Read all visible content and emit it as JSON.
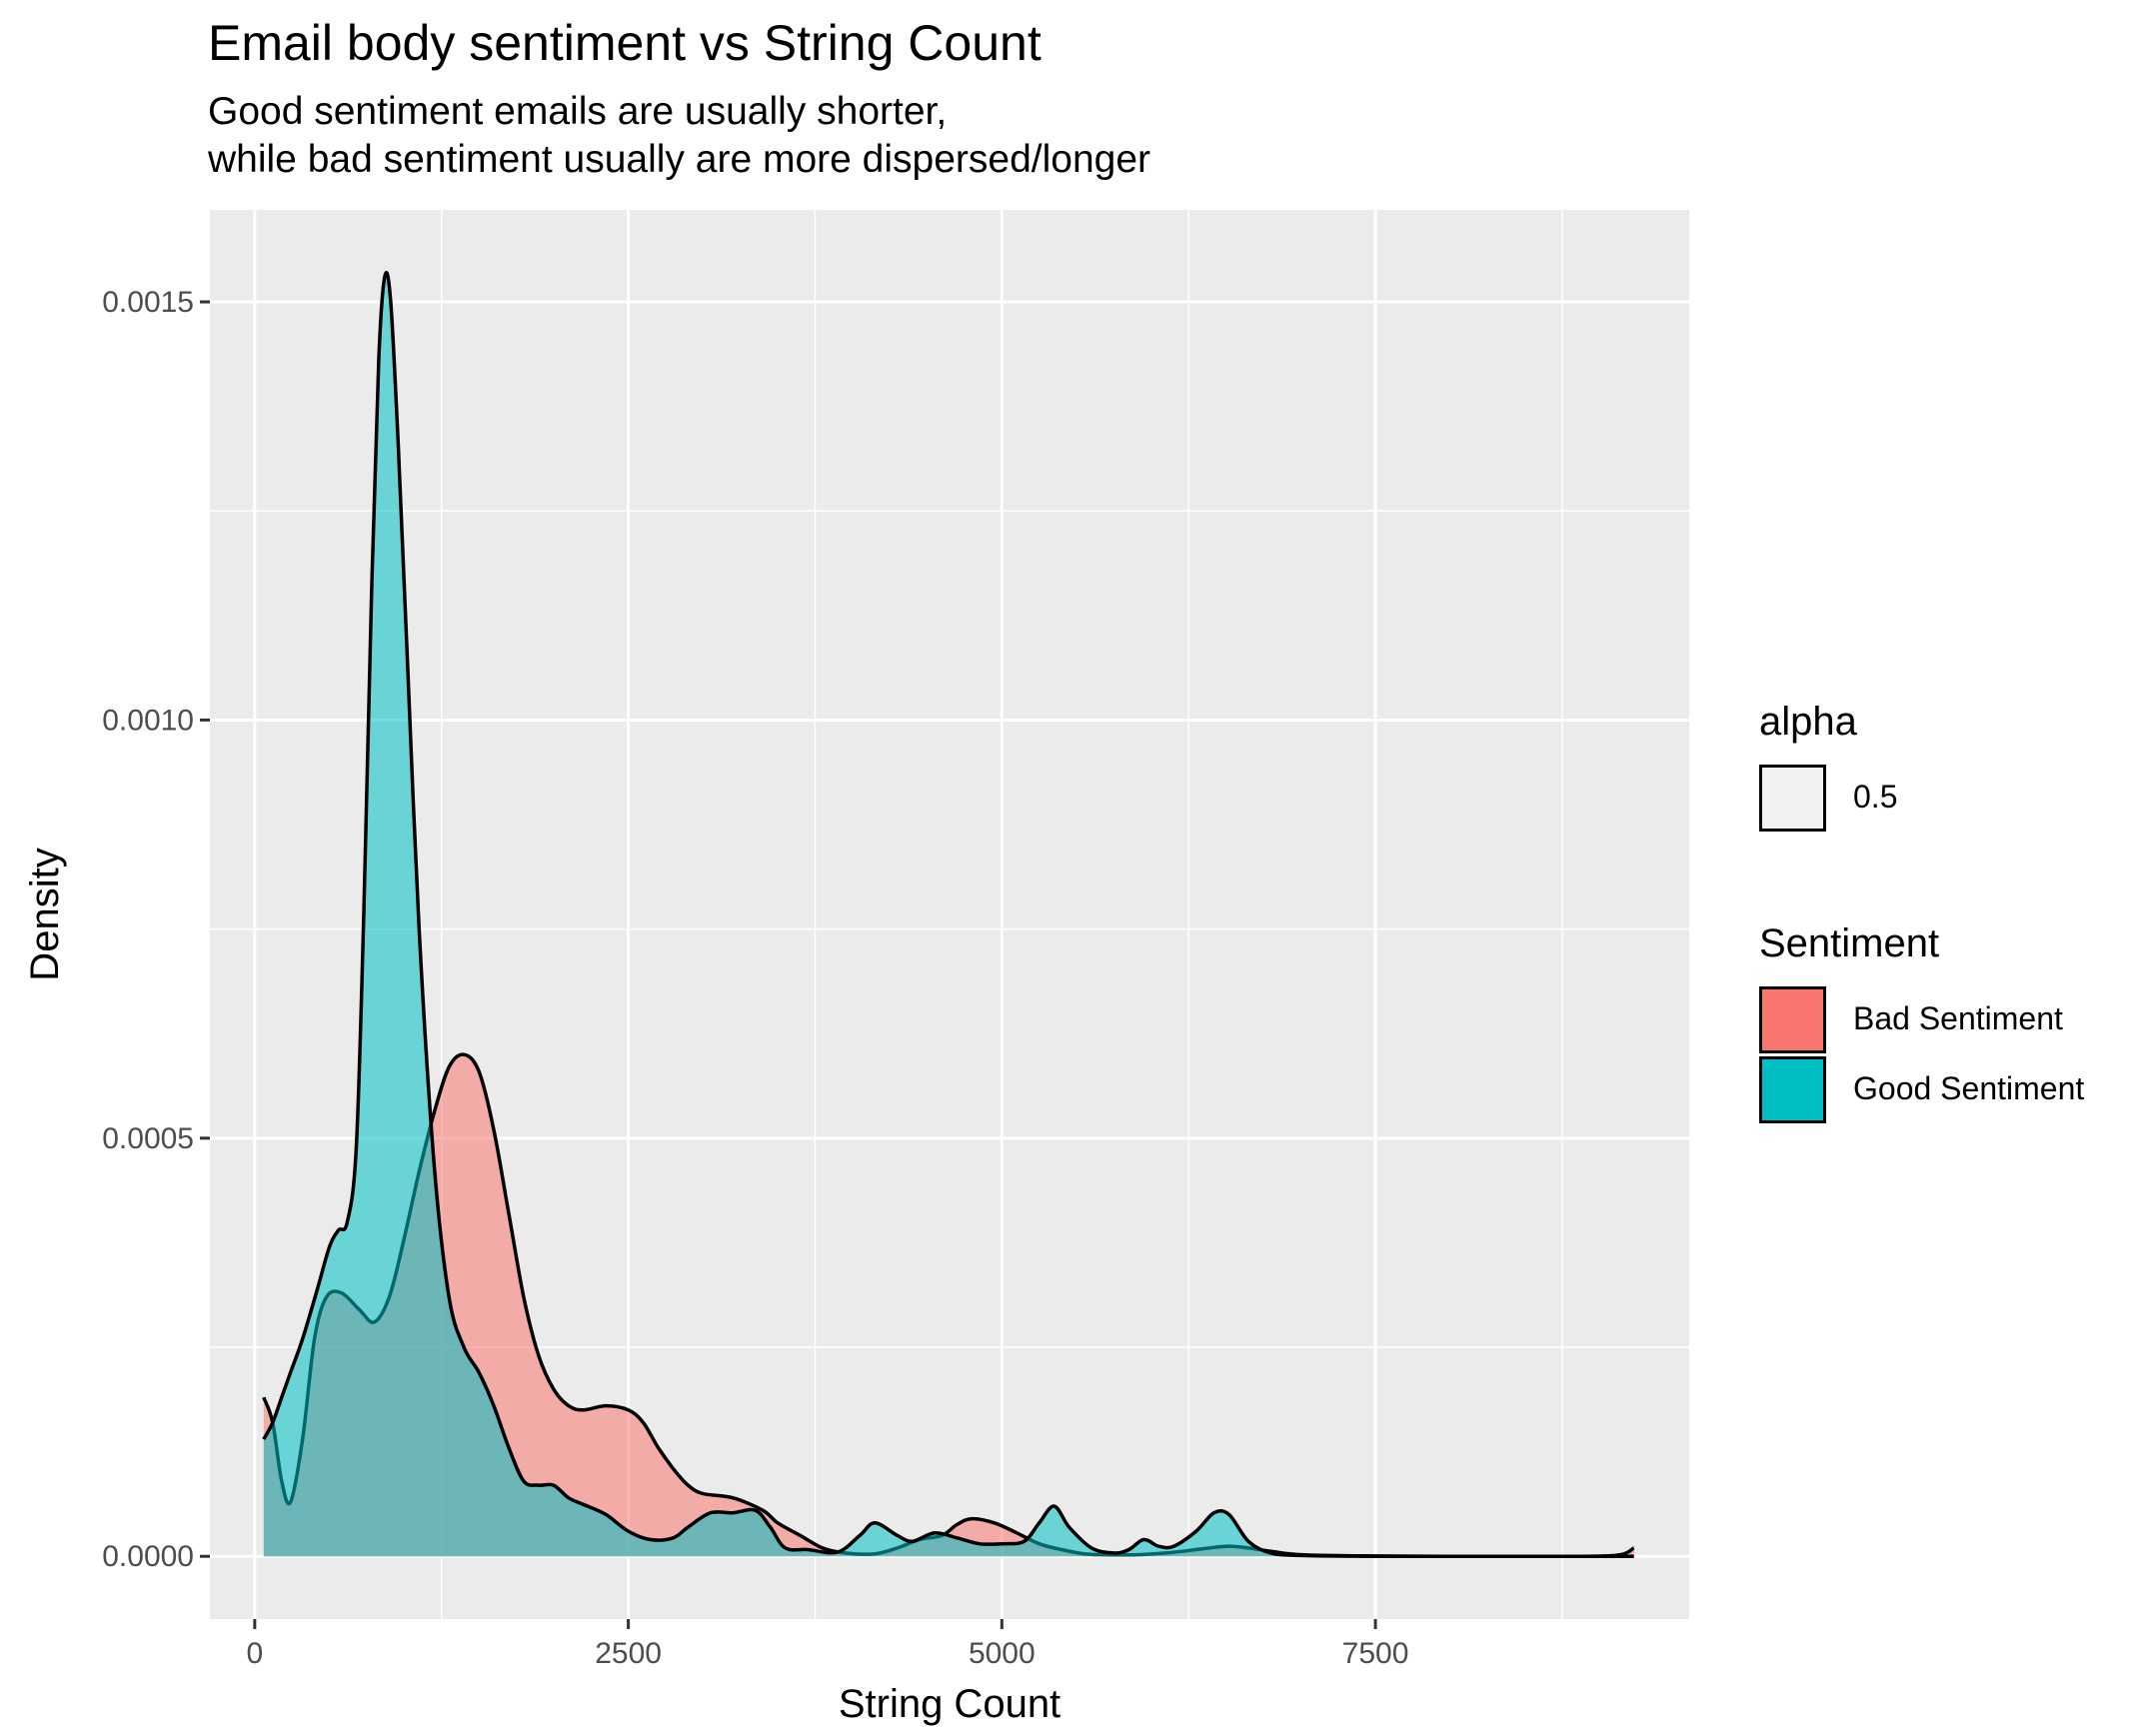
{
  "chart_data": {
    "type": "area",
    "subtype": "density",
    "title": "Email body sentiment vs String Count",
    "subtitle": [
      "Good sentiment emails are usually shorter,",
      "while bad sentiment usually are more dispersed/longer"
    ],
    "xlabel": "String Count",
    "ylabel": "Density",
    "xlim": [
      -300,
      9600
    ],
    "ylim": [
      -7.5e-05,
      0.00161
    ],
    "x_ticks": [
      0,
      2500,
      5000,
      7500
    ],
    "x_tick_labels": [
      "0",
      "2500",
      "5000",
      "7500"
    ],
    "y_ticks": [
      0,
      0.0005,
      0.001,
      0.0015
    ],
    "y_tick_labels": [
      "0.0000",
      "0.0005",
      "0.0010",
      "0.0015"
    ],
    "grid": true,
    "legend_position": "right",
    "legends": [
      {
        "title": "alpha",
        "items": [
          {
            "label": "0.5",
            "color": "#f2f2f2"
          }
        ]
      },
      {
        "title": "Sentiment",
        "items": [
          {
            "label": "Bad Sentiment",
            "color": "#F8766D"
          },
          {
            "label": "Good Sentiment",
            "color": "#00BFC4"
          }
        ]
      }
    ],
    "series": [
      {
        "name": "Bad Sentiment",
        "color": "#F8766D",
        "points": [
          [
            60,
            0.00019
          ],
          [
            120,
            0.00016
          ],
          [
            180,
            9e-05
          ],
          [
            240,
            6.5e-05
          ],
          [
            320,
            0.00014
          ],
          [
            400,
            0.00026
          ],
          [
            480,
            0.00031
          ],
          [
            580,
            0.000315
          ],
          [
            700,
            0.000295
          ],
          [
            800,
            0.00028
          ],
          [
            900,
            0.00031
          ],
          [
            1000,
            0.00038
          ],
          [
            1100,
            0.00046
          ],
          [
            1200,
            0.00053
          ],
          [
            1300,
            0.000585
          ],
          [
            1400,
            0.0006
          ],
          [
            1500,
            0.00058
          ],
          [
            1600,
            0.00051
          ],
          [
            1700,
            0.00041
          ],
          [
            1800,
            0.00031
          ],
          [
            1900,
            0.00024
          ],
          [
            2000,
            0.0002
          ],
          [
            2100,
            0.00018
          ],
          [
            2200,
            0.000175
          ],
          [
            2350,
            0.00018
          ],
          [
            2500,
            0.000175
          ],
          [
            2600,
            0.00016
          ],
          [
            2700,
            0.00013
          ],
          [
            2800,
            0.000105
          ],
          [
            2900,
            8.5e-05
          ],
          [
            3000,
            7.5e-05
          ],
          [
            3200,
            7e-05
          ],
          [
            3400,
            5.5e-05
          ],
          [
            3500,
            4e-05
          ],
          [
            3650,
            2.5e-05
          ],
          [
            3800,
            1e-05
          ],
          [
            3950,
            4e-06
          ],
          [
            4150,
            3e-06
          ],
          [
            4300,
            1e-05
          ],
          [
            4450,
            2e-05
          ],
          [
            4600,
            2.5e-05
          ],
          [
            4700,
            3.8e-05
          ],
          [
            4800,
            4.5e-05
          ],
          [
            4950,
            4e-05
          ],
          [
            5100,
            2.8e-05
          ],
          [
            5250,
            1.5e-05
          ],
          [
            5400,
            8e-06
          ],
          [
            5550,
            3e-06
          ],
          [
            5700,
            2e-06
          ],
          [
            5900,
            2e-06
          ],
          [
            6100,
            4e-06
          ],
          [
            6300,
            8e-06
          ],
          [
            6500,
            1.2e-05
          ],
          [
            6650,
            1e-05
          ],
          [
            6800,
            6e-06
          ],
          [
            7000,
            2e-06
          ],
          [
            7400,
            5e-07
          ],
          [
            8000,
            0
          ],
          [
            8600,
            0
          ],
          [
            9100,
            1e-06
          ],
          [
            9230,
            1e-05
          ]
        ]
      },
      {
        "name": "Good Sentiment",
        "color": "#00BFC4",
        "points": [
          [
            60,
            0.00014
          ],
          [
            120,
            0.00016
          ],
          [
            180,
            0.00019
          ],
          [
            240,
            0.00022
          ],
          [
            320,
            0.00026
          ],
          [
            420,
            0.00032
          ],
          [
            500,
            0.00037
          ],
          [
            560,
            0.00039
          ],
          [
            620,
            0.0004
          ],
          [
            680,
            0.00049
          ],
          [
            730,
            0.00077
          ],
          [
            780,
            0.00114
          ],
          [
            830,
            0.00143
          ],
          [
            870,
            0.00153
          ],
          [
            910,
            0.0015
          ],
          [
            960,
            0.00133
          ],
          [
            1020,
            0.00108
          ],
          [
            1100,
            0.00075
          ],
          [
            1200,
            0.00047
          ],
          [
            1300,
            0.00031
          ],
          [
            1400,
            0.00025
          ],
          [
            1500,
            0.00022
          ],
          [
            1600,
            0.00018
          ],
          [
            1700,
            0.00013
          ],
          [
            1800,
            9e-05
          ],
          [
            1900,
            8.5e-05
          ],
          [
            2000,
            8.5e-05
          ],
          [
            2100,
            7e-05
          ],
          [
            2200,
            6.2e-05
          ],
          [
            2350,
            5e-05
          ],
          [
            2500,
            3e-05
          ],
          [
            2650,
            2e-05
          ],
          [
            2800,
            2.2e-05
          ],
          [
            2900,
            3.5e-05
          ],
          [
            3050,
            5.2e-05
          ],
          [
            3200,
            5.2e-05
          ],
          [
            3350,
            5.5e-05
          ],
          [
            3450,
            3.5e-05
          ],
          [
            3550,
            1e-05
          ],
          [
            3700,
            8e-06
          ],
          [
            3900,
            5e-06
          ],
          [
            4050,
            2.5e-05
          ],
          [
            4150,
            4e-05
          ],
          [
            4300,
            2.5e-05
          ],
          [
            4400,
            1.8e-05
          ],
          [
            4550,
            2.8e-05
          ],
          [
            4700,
            2.2e-05
          ],
          [
            4850,
            1.5e-05
          ],
          [
            5000,
            1.5e-05
          ],
          [
            5150,
            1.8e-05
          ],
          [
            5250,
            4e-05
          ],
          [
            5350,
            6e-05
          ],
          [
            5450,
            3.5e-05
          ],
          [
            5600,
            1e-05
          ],
          [
            5750,
            4e-06
          ],
          [
            5850,
            8e-06
          ],
          [
            5950,
            2e-05
          ],
          [
            6050,
            1.2e-05
          ],
          [
            6150,
            1.2e-05
          ],
          [
            6300,
            3e-05
          ],
          [
            6420,
            5.2e-05
          ],
          [
            6520,
            5e-05
          ],
          [
            6650,
            1.8e-05
          ],
          [
            6800,
            4e-06
          ],
          [
            7000,
            1e-06
          ],
          [
            7500,
            0
          ],
          [
            8200,
            0
          ],
          [
            8800,
            0
          ],
          [
            9230,
            0
          ]
        ]
      }
    ]
  }
}
